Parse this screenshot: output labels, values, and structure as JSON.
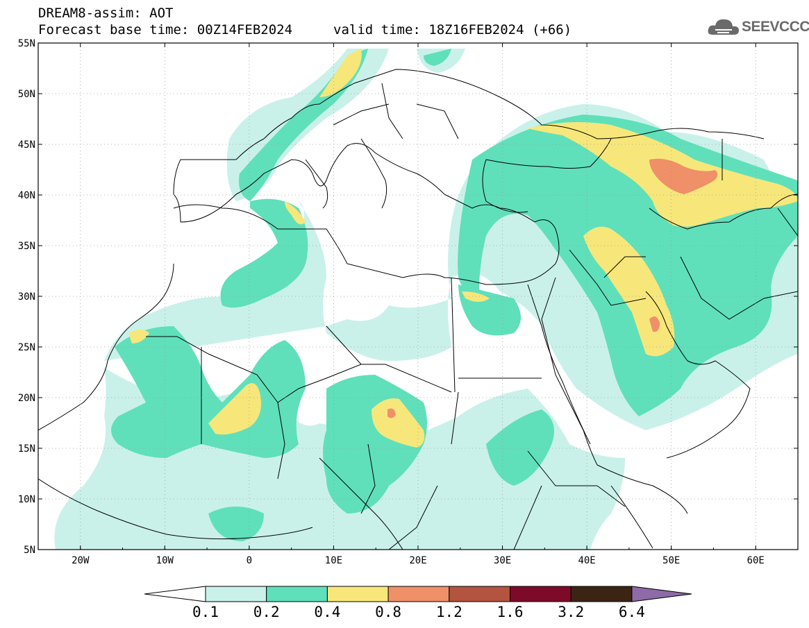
{
  "header": {
    "line1": "DREAM8-assim: AOT",
    "line2_base": "Forecast base time: 00Z14FEB2024",
    "line2_valid": "valid time: 18Z16FEB2024 (+66)"
  },
  "logo": {
    "text": "SEEVCCC",
    "icon": "cloud-icon"
  },
  "map": {
    "lon_range": [
      -25,
      65
    ],
    "lat_range": [
      5,
      55
    ],
    "lat_ticks": [
      "55N",
      "50N",
      "45N",
      "40N",
      "35N",
      "30N",
      "25N",
      "20N",
      "15N",
      "10N",
      "5N"
    ],
    "lon_ticks": [
      "20W",
      "10W",
      "0",
      "10E",
      "20E",
      "30E",
      "40E",
      "50E",
      "60E"
    ]
  },
  "colorbar": {
    "labels": [
      "0.1",
      "0.2",
      "0.4",
      "0.8",
      "1.2",
      "1.6",
      "3.2",
      "6.4"
    ],
    "colors": [
      "#c9f1ea",
      "#5fe0bb",
      "#f7e77a",
      "#ef9068",
      "#b25440",
      "#7e0a2a",
      "#3c2415",
      "#8e6aa8"
    ]
  },
  "colors": {
    "c1": "#c9f1ea",
    "c2": "#5fe0bb",
    "c3": "#f7e77a",
    "c4": "#ef9068",
    "c5": "#b25440",
    "border": "#000000"
  }
}
